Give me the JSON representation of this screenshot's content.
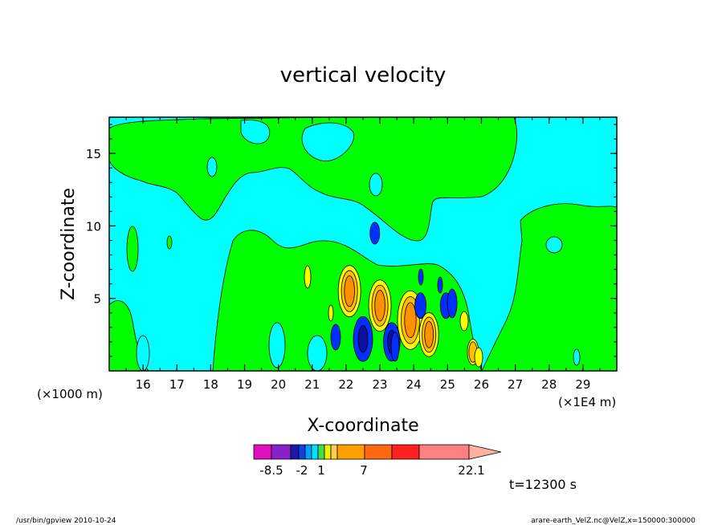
{
  "chart_data": {
    "type": "heatmap",
    "title": "vertical velocity",
    "xlabel": "X-coordinate",
    "ylabel": "Z-coordinate",
    "x_unit_left": "(×1000 m)",
    "x_unit_right": "(×1E4 m)",
    "xlim": [
      150000,
      300000
    ],
    "ylim": [
      0,
      17500
    ],
    "x_ticks": [
      "16",
      "17",
      "18",
      "19",
      "20",
      "21",
      "22",
      "23",
      "24",
      "25",
      "26",
      "27",
      "28",
      "29"
    ],
    "y_ticks": [
      "5",
      "10",
      "15"
    ],
    "colorbar": {
      "labels": [
        "-8.5",
        "-2",
        "1",
        "7",
        "22.1"
      ],
      "colors": [
        "#e010c0",
        "#8a20c8",
        "#1a1aa8",
        "#1040e0",
        "#00a0ff",
        "#00e0ff",
        "#40e040",
        "#f0f000",
        "#ffd040",
        "#ffa000",
        "#ff6810",
        "#ff2020",
        "#ff8080",
        "#ffb0a0"
      ]
    },
    "levels_palette": {
      "cyan": "#00ffff",
      "green": "#00ff00",
      "yellow": "#ffff00",
      "gold": "#ffc000",
      "orange": "#ff9000",
      "blue": "#0030ff",
      "darkblue": "#1010a0"
    },
    "updrafts": [
      {
        "x": 221000,
        "z": 5500,
        "value": 7
      },
      {
        "x": 230000,
        "z": 4500,
        "value": 7
      },
      {
        "x": 239000,
        "z": 3500,
        "value": 8
      },
      {
        "x": 244500,
        "z": 2500,
        "value": 6
      },
      {
        "x": 257500,
        "z": 1300,
        "value": 2
      }
    ],
    "downdrafts": [
      {
        "x": 225000,
        "z": 2200,
        "value": -6
      },
      {
        "x": 233500,
        "z": 2000,
        "value": -5
      },
      {
        "x": 242000,
        "z": 4500,
        "value": -3
      },
      {
        "x": 249500,
        "z": 4500,
        "value": -3
      },
      {
        "x": 228500,
        "z": 9500,
        "value": -2
      }
    ],
    "time_label": "t=12300 s"
  },
  "footer": {
    "left": "/usr/bin/gpview   2010-10-24",
    "right": "arare-earth_VelZ.nc@VelZ,x=150000:300000"
  }
}
